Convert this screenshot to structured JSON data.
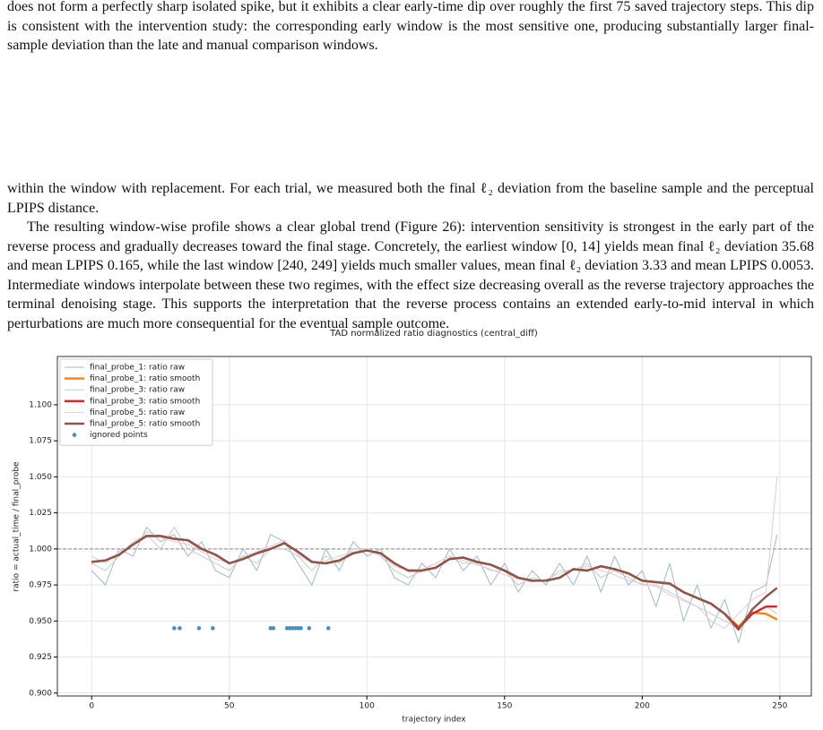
{
  "paragraphs": [
    "does not form a perfectly sharp isolated spike, but it exhibits a clear early-time dip over roughly the first 75 saved trajectory steps. This dip is consistent with the intervention study: the corresponding early window is the most sensitive one, producing substantially larger final-sample deviation than the late and manual comparison windows.",
    "within the window with replacement. For each trial, we measured both the final ℓ₂ deviation from the baseline sample and the perceptual LPIPS distance.",
    "The resulting window-wise profile shows a clear global trend (Figure 26): intervention sensitivity is strongest in the early part of the reverse process and gradually decreases toward the final stage. Concretely, the earliest window [0, 14] yields mean final ℓ₂ deviation 35.68 and mean LPIPS 0.165, while the last window [240, 249] yields much smaller values, mean final ℓ₂ deviation 3.33 and mean LPIPS 0.0053. Intermediate windows interpolate between these two regimes, with the effect size decreasing overall as the reverse trajectory approaches the terminal denoising stage. This supports the interpretation that the reverse process contains an extended early-to-mid interval in which perturbations are much more consequential for the eventual sample outcome."
  ],
  "chart_data": {
    "type": "line",
    "title": "TAD normalized ratio diagnostics (central_diff)",
    "x_label": "trajectory index",
    "y_label": "ratio = actual_time / final_probe",
    "x": [
      0,
      5,
      10,
      15,
      20,
      25,
      30,
      35,
      40,
      45,
      50,
      55,
      60,
      65,
      70,
      75,
      80,
      85,
      90,
      95,
      100,
      105,
      110,
      115,
      120,
      125,
      130,
      135,
      140,
      145,
      150,
      155,
      160,
      165,
      170,
      175,
      180,
      185,
      190,
      195,
      200,
      205,
      210,
      215,
      220,
      225,
      230,
      235,
      240,
      245,
      249
    ],
    "series": [
      {
        "name": "final_probe_1: ratio raw",
        "color": "#9fb9c8",
        "style": "raw",
        "values": [
          0.985,
          0.975,
          1.0,
          0.995,
          1.015,
          1.005,
          1.01,
          0.995,
          1.005,
          0.985,
          0.98,
          1.0,
          0.985,
          1.01,
          1.005,
          0.99,
          0.975,
          1.0,
          0.985,
          1.005,
          0.995,
          1.0,
          0.98,
          0.975,
          0.99,
          0.98,
          1.0,
          0.985,
          0.995,
          0.975,
          0.99,
          0.97,
          0.985,
          0.975,
          0.99,
          0.975,
          0.995,
          0.97,
          0.995,
          0.975,
          0.985,
          0.96,
          0.99,
          0.95,
          0.975,
          0.945,
          0.965,
          0.935,
          0.97,
          0.975,
          1.01
        ]
      },
      {
        "name": "final_probe_1: ratio smooth",
        "color": "#ff7f0e",
        "style": "smooth",
        "values": [
          0.991,
          0.992,
          0.996,
          1.003,
          1.009,
          1.009,
          1.007,
          1.006,
          1.0,
          0.996,
          0.99,
          0.993,
          0.997,
          1.0,
          1.004,
          0.998,
          0.991,
          0.99,
          0.992,
          0.997,
          0.999,
          0.997,
          0.99,
          0.985,
          0.985,
          0.987,
          0.993,
          0.994,
          0.991,
          0.989,
          0.985,
          0.98,
          0.978,
          0.978,
          0.98,
          0.986,
          0.985,
          0.988,
          0.986,
          0.983,
          0.978,
          0.977,
          0.976,
          0.97,
          0.966,
          0.962,
          0.955,
          0.946,
          0.956,
          0.955,
          0.951
        ]
      },
      {
        "name": "final_probe_3: ratio raw",
        "color": "#c3cfc3",
        "style": "raw",
        "values": [
          0.99,
          0.985,
          0.995,
          1.005,
          1.01,
          1.0,
          1.015,
          1.0,
          0.995,
          0.99,
          0.985,
          0.995,
          0.99,
          1.0,
          1.0,
          0.995,
          0.985,
          0.995,
          0.99,
          1.0,
          1.0,
          0.995,
          0.985,
          0.98,
          0.985,
          0.99,
          0.995,
          0.99,
          0.99,
          0.985,
          0.985,
          0.975,
          0.98,
          0.978,
          0.985,
          0.985,
          0.99,
          0.98,
          0.985,
          0.98,
          0.975,
          0.975,
          0.97,
          0.965,
          0.96,
          0.955,
          0.95,
          0.945,
          0.955,
          0.96,
          0.955
        ]
      },
      {
        "name": "final_probe_3: ratio smooth",
        "color": "#d62728",
        "style": "smooth",
        "values": [
          0.991,
          0.992,
          0.996,
          1.003,
          1.009,
          1.009,
          1.007,
          1.006,
          1.0,
          0.996,
          0.99,
          0.993,
          0.997,
          1.0,
          1.004,
          0.998,
          0.991,
          0.99,
          0.992,
          0.997,
          0.999,
          0.997,
          0.99,
          0.985,
          0.985,
          0.987,
          0.993,
          0.994,
          0.991,
          0.989,
          0.985,
          0.98,
          0.978,
          0.978,
          0.98,
          0.986,
          0.985,
          0.988,
          0.986,
          0.983,
          0.978,
          0.977,
          0.976,
          0.97,
          0.966,
          0.962,
          0.955,
          0.945,
          0.955,
          0.96,
          0.96
        ]
      },
      {
        "name": "final_probe_5: ratio raw",
        "color": "#e8c8d4",
        "style": "raw",
        "values": [
          0.995,
          0.99,
          0.998,
          1.002,
          1.012,
          1.008,
          1.005,
          1.003,
          0.998,
          0.993,
          0.99,
          0.995,
          0.998,
          1.002,
          1.006,
          0.996,
          0.99,
          0.992,
          0.995,
          0.998,
          1.0,
          0.996,
          0.988,
          0.985,
          0.986,
          0.99,
          0.995,
          0.992,
          0.989,
          0.986,
          0.982,
          0.979,
          0.977,
          0.979,
          0.983,
          0.986,
          0.988,
          0.985,
          0.982,
          0.978,
          0.976,
          0.974,
          0.968,
          0.964,
          0.96,
          0.95,
          0.945,
          0.955,
          0.965,
          0.97,
          1.05
        ]
      },
      {
        "name": "final_probe_5: ratio smooth",
        "color": "#8c564b",
        "style": "smooth",
        "values": [
          0.991,
          0.992,
          0.996,
          1.003,
          1.009,
          1.009,
          1.007,
          1.006,
          1.0,
          0.996,
          0.99,
          0.993,
          0.997,
          1.0,
          1.004,
          0.998,
          0.991,
          0.99,
          0.992,
          0.997,
          0.999,
          0.997,
          0.99,
          0.985,
          0.985,
          0.987,
          0.993,
          0.994,
          0.991,
          0.989,
          0.985,
          0.98,
          0.978,
          0.978,
          0.98,
          0.986,
          0.985,
          0.988,
          0.986,
          0.983,
          0.978,
          0.977,
          0.976,
          0.97,
          0.966,
          0.962,
          0.955,
          0.944,
          0.958,
          0.967,
          0.973
        ]
      },
      {
        "name": "ignored points",
        "color": "#4a8fbd",
        "style": "points",
        "x": [
          30,
          32,
          39,
          44,
          65,
          66,
          71,
          72,
          73,
          74,
          75,
          76,
          79,
          86
        ],
        "values": [
          0.945,
          0.945,
          0.945,
          0.945,
          0.945,
          0.945,
          0.945,
          0.945,
          0.945,
          0.945,
          0.945,
          0.945,
          0.945,
          0.945
        ]
      }
    ],
    "reference_line": 1.0,
    "xlim": [
      -12.45,
      261.45
    ],
    "xticks": [
      0,
      50,
      100,
      150,
      200,
      250
    ],
    "ylim": [
      0.898,
      1.1335
    ],
    "yticks": [
      {
        "value": 0.9,
        "label": "0.900"
      },
      {
        "value": 0.925,
        "label": "0.925"
      },
      {
        "value": 0.95,
        "label": "0.950"
      },
      {
        "value": 0.975,
        "label": "0.975"
      },
      {
        "value": 1.0,
        "label": "1.000"
      },
      {
        "value": 1.025,
        "label": "1.025"
      },
      {
        "value": 1.05,
        "label": "1.050"
      },
      {
        "value": 1.075,
        "label": "1.075"
      },
      {
        "value": 1.1,
        "label": "1.100"
      }
    ],
    "grid": true,
    "legend": "upper left"
  }
}
